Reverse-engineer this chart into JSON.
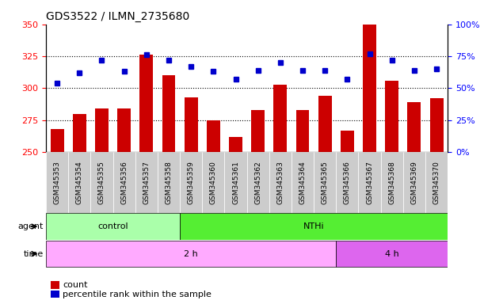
{
  "title": "GDS3522 / ILMN_2735680",
  "categories": [
    "GSM345353",
    "GSM345354",
    "GSM345355",
    "GSM345356",
    "GSM345357",
    "GSM345358",
    "GSM345359",
    "GSM345360",
    "GSM345361",
    "GSM345362",
    "GSM345363",
    "GSM345364",
    "GSM345365",
    "GSM345366",
    "GSM345367",
    "GSM345368",
    "GSM345369",
    "GSM345370"
  ],
  "bar_values": [
    268,
    280,
    284,
    284,
    326,
    310,
    293,
    275,
    262,
    283,
    303,
    283,
    294,
    267,
    350,
    306,
    289,
    292
  ],
  "dot_values": [
    54,
    62,
    72,
    63,
    76,
    72,
    67,
    63,
    57,
    64,
    70,
    64,
    64,
    57,
    77,
    72,
    64,
    65
  ],
  "bar_color": "#cc0000",
  "dot_color": "#0000cc",
  "ylim_left": [
    250,
    350
  ],
  "ylim_right": [
    0,
    100
  ],
  "yticks_left": [
    250,
    275,
    300,
    325,
    350
  ],
  "yticks_right": [
    0,
    25,
    50,
    75,
    100
  ],
  "agent_row_label": "agent",
  "time_row_label": "time",
  "legend_count_label": "count",
  "legend_pct_label": "percentile rank within the sample",
  "agent_control_color": "#aaffaa",
  "agent_nthi_color": "#55ee33",
  "time_2h_color": "#ffaaff",
  "time_4h_color": "#dd66ee",
  "xticklabel_bg": "#cccccc",
  "plot_bg": "#ffffff"
}
